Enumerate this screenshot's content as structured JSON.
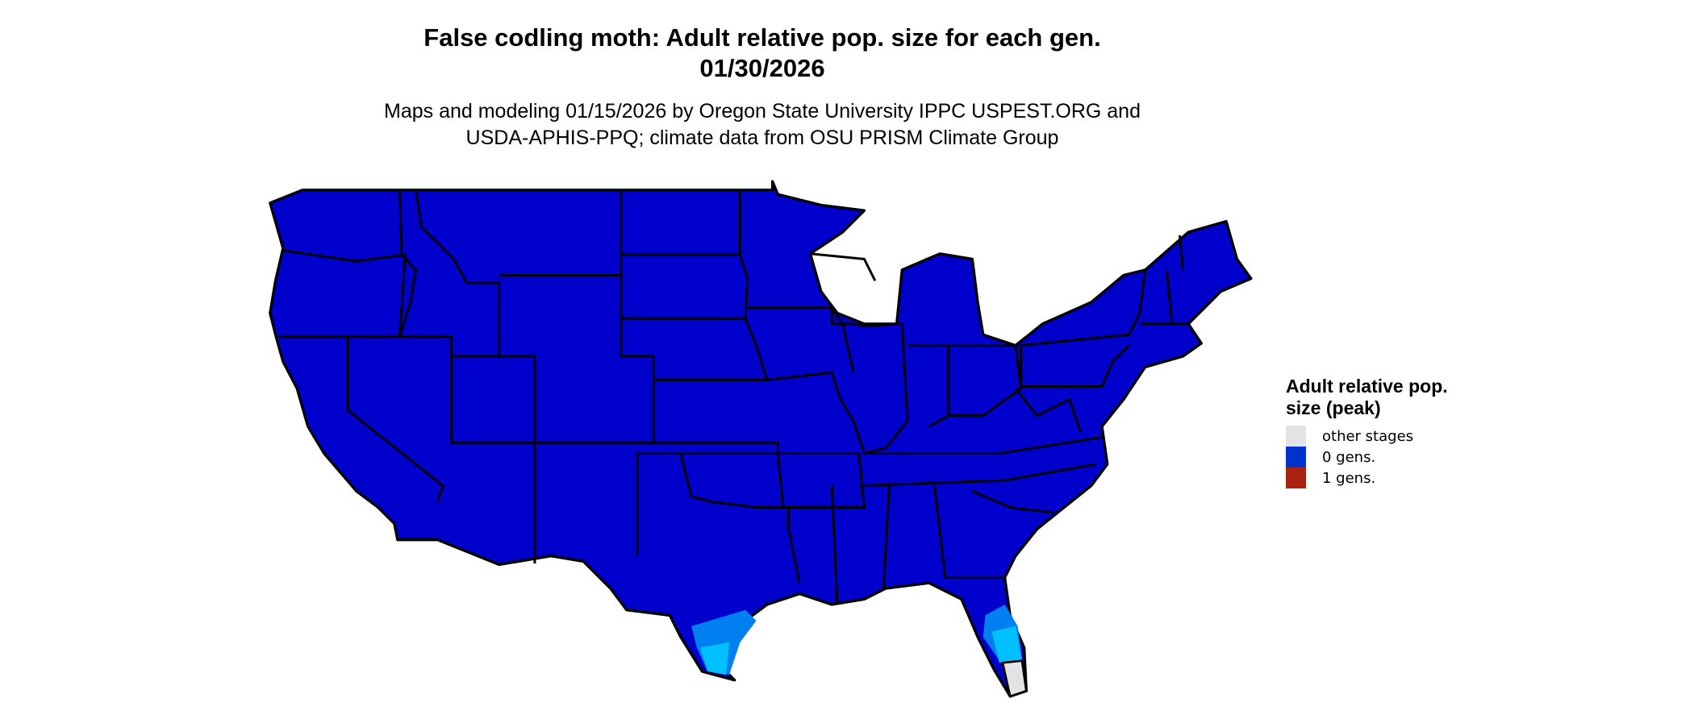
{
  "title": {
    "line1": "False codling moth: Adult relative pop. size for each gen.",
    "line2": "01/30/2026"
  },
  "subtitle": {
    "line1": "Maps and modeling 01/15/2026 by Oregon State University IPPC USPEST.ORG and",
    "line2": "USDA-APHIS-PPQ; climate data from OSU PRISM Climate Group"
  },
  "map": {
    "region": "Contiguous United States",
    "base_fill": "#0000CC",
    "gradient_fills": [
      "#0040E0",
      "#0080F0",
      "#00C0FF"
    ],
    "border_color": "#000000"
  },
  "legend": {
    "title": "Adult relative pop. size (peak)",
    "items": [
      {
        "label": "other stages",
        "color": "#E3E3E3"
      },
      {
        "label": "0 gens.",
        "color": "#0033CC"
      },
      {
        "label": "1 gens.",
        "color": "#AA2211"
      }
    ]
  }
}
